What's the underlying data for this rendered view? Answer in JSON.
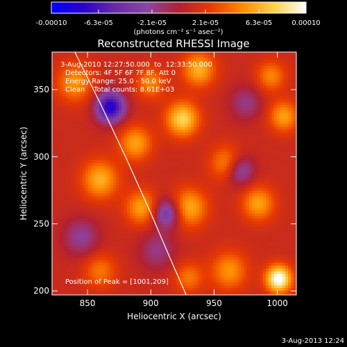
{
  "chart_data": {
    "type": "heatmap",
    "title": "Reconstructed RHESSI Image",
    "xlabel": "Heliocentric X (arcsec)",
    "ylabel": "Heliocentric Y (arcsec)",
    "xlim": [
      822,
      1015
    ],
    "ylim": [
      197,
      378
    ],
    "x_ticks": [
      850,
      900,
      950,
      1000
    ],
    "y_ticks": [
      200,
      250,
      300,
      350
    ],
    "colorbar": {
      "min": -0.0001,
      "max": 0.0001,
      "tick_labels": [
        "-0.00010",
        "-6.3e-05",
        "-2.1e-05",
        "2.1e-05",
        "6.3e-05",
        "0.00010"
      ],
      "tick_values": [
        -0.0001,
        -6.3e-05,
        -2.1e-05,
        2.1e-05,
        6.3e-05,
        0.0001
      ],
      "unit_label": "(photons cm⁻² s⁻¹ asec⁻²)"
    },
    "annotations": [
      " 3-Aug-2010 12:27:50.000  to  12:33:50.000",
      "Detectors: 4F 5F 6F 7F 8F, Att 0",
      "Energy Range: 25.0 - 50.0 keV",
      "Clean    Total counts: 8.61E+03"
    ],
    "peak_label": "Position of Peak = [1001,209]",
    "sources": [
      {
        "x": 1001,
        "y": 209,
        "sigma": 7,
        "amp": 1.0
      },
      {
        "x": 962,
        "y": 215,
        "sigma": 10,
        "amp": 0.45
      },
      {
        "x": 985,
        "y": 265,
        "sigma": 9,
        "amp": 0.5
      },
      {
        "x": 930,
        "y": 262,
        "sigma": 10,
        "amp": 0.55
      },
      {
        "x": 893,
        "y": 262,
        "sigma": 9,
        "amp": 0.5
      },
      {
        "x": 860,
        "y": 283,
        "sigma": 10,
        "amp": 0.55
      },
      {
        "x": 888,
        "y": 310,
        "sigma": 9,
        "amp": 0.5
      },
      {
        "x": 925,
        "y": 328,
        "sigma": 9,
        "amp": 0.7
      },
      {
        "x": 938,
        "y": 365,
        "sigma": 9,
        "amp": 0.55
      },
      {
        "x": 900,
        "y": 355,
        "sigma": 8,
        "amp": 0.4
      },
      {
        "x": 840,
        "y": 355,
        "sigma": 10,
        "amp": 0.45
      },
      {
        "x": 960,
        "y": 295,
        "sigma": 9,
        "amp": 0.45
      },
      {
        "x": 1005,
        "y": 330,
        "sigma": 8,
        "amp": 0.5
      },
      {
        "x": 995,
        "y": 360,
        "sigma": 8,
        "amp": 0.4
      },
      {
        "x": 860,
        "y": 215,
        "sigma": 9,
        "amp": 0.35
      },
      {
        "x": 930,
        "y": 210,
        "sigma": 8,
        "amp": 0.35
      },
      {
        "x": 868,
        "y": 337,
        "sigma": 8,
        "amp": -0.95
      },
      {
        "x": 913,
        "y": 258,
        "sigma": 8,
        "amp": -0.6
      },
      {
        "x": 970,
        "y": 290,
        "sigma": 8,
        "amp": -0.5
      },
      {
        "x": 845,
        "y": 240,
        "sigma": 10,
        "amp": -0.35
      },
      {
        "x": 905,
        "y": 230,
        "sigma": 10,
        "amp": -0.3
      },
      {
        "x": 975,
        "y": 340,
        "sigma": 9,
        "amp": -0.3
      }
    ],
    "limb": {
      "x": [
        840,
        860,
        880,
        900,
        915,
        928
      ],
      "y": [
        378,
        340,
        300,
        258,
        225,
        197
      ]
    }
  },
  "footer_date": "3-Aug-2013 12:24",
  "colors": {
    "background": "#000000",
    "foreground": "#ffffff",
    "colormap_stops": [
      "#0000ff",
      "#2b00c8",
      "#6a2aa8",
      "#8a44a6",
      "#b22030",
      "#e83a00",
      "#ff8a00",
      "#ffd24a",
      "#ffffff"
    ]
  }
}
